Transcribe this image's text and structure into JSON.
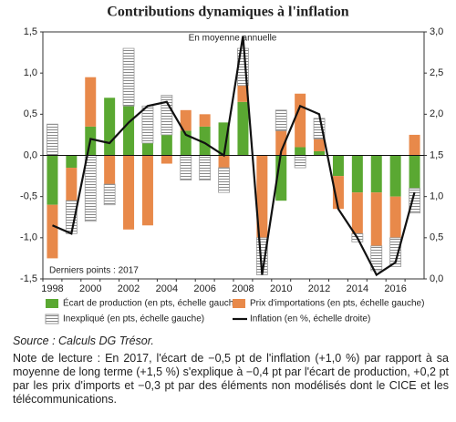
{
  "chart_data": {
    "type": "bar-line",
    "title": "Contributions dynamiques à l'inflation",
    "annotations": [
      "En moyenne annuelle",
      "Derniers points : 2017"
    ],
    "categories": [
      "1998",
      null,
      "2000",
      null,
      "2002",
      null,
      "2004",
      null,
      "2006",
      null,
      "2008",
      null,
      "2010",
      null,
      "2012",
      null,
      "2014",
      null,
      "2016",
      null
    ],
    "series": [
      {
        "name": "Écart de production (en pts, échelle gauche)",
        "type": "bar",
        "color": "#5aa832",
        "values": [
          -0.6,
          -0.15,
          0.35,
          0.7,
          0.6,
          0.15,
          0.25,
          0.3,
          0.35,
          0.4,
          0.65,
          0,
          -0.55,
          0.1,
          0.05,
          -0.25,
          -0.45,
          -0.45,
          -0.5,
          -0.4
        ]
      },
      {
        "name": "Prix d'importations (en pts, échelle gauche)",
        "type": "bar",
        "color": "#e8894a",
        "values": [
          -0.65,
          -0.4,
          0.6,
          -0.35,
          -0.9,
          -0.85,
          -0.1,
          0.25,
          0.15,
          -0.15,
          0.2,
          -1.0,
          0.3,
          0.65,
          0.15,
          -0.4,
          -0.5,
          -0.65,
          -0.5,
          0.25
        ]
      },
      {
        "name": "Inexpliqué (en pts, échelle gauche)",
        "type": "bar",
        "color": "#999999",
        "hatch": true,
        "values": [
          0.38,
          -0.4,
          -0.8,
          -0.25,
          0.7,
          0.45,
          0.48,
          -0.3,
          -0.3,
          -0.3,
          0.45,
          -0.45,
          0.25,
          -0.15,
          0.25,
          0,
          -0.1,
          -0.3,
          -0.35,
          -0.3
        ]
      },
      {
        "name": "Inflation (en %, échelle droite)",
        "type": "line",
        "axis": "y2",
        "color": "#111111",
        "values": [
          0.65,
          0.55,
          1.7,
          1.65,
          1.9,
          2.1,
          2.15,
          1.75,
          1.65,
          1.5,
          2.95,
          0.05,
          1.55,
          2.1,
          2.0,
          0.85,
          0.5,
          0.05,
          0.2,
          1.05
        ]
      }
    ],
    "ylim": [
      -1.5,
      1.5
    ],
    "yticks": [
      {
        "value": -1.5,
        "label": "-1,5"
      },
      {
        "value": -1,
        "label": "-1,0"
      },
      {
        "value": -0.5,
        "label": "-0,5"
      },
      {
        "value": 0,
        "label": "0,0"
      },
      {
        "value": 0.5,
        "label": "0,5"
      },
      {
        "value": 1,
        "label": "1,0"
      },
      {
        "value": 1.5,
        "label": "1,5"
      }
    ],
    "y2lim": [
      0,
      3
    ],
    "y2ticks": [
      {
        "value": 0,
        "label": "0,0"
      },
      {
        "value": 0.5,
        "label": "0,5"
      },
      {
        "value": 1,
        "label": "1,0"
      },
      {
        "value": 1.5,
        "label": "1,5"
      },
      {
        "value": 2,
        "label": "2,0"
      },
      {
        "value": 2.5,
        "label": "2,5"
      },
      {
        "value": 3,
        "label": "3,0"
      }
    ],
    "legend": "bottom",
    "source": "Source : Calculs DG Trésor.",
    "note": "Note de lecture : En 2017, l'écart de −0,5 pt de l'inflation (+1,0 %) par rapport à sa moyenne de long terme (+1,5 %) s'explique à −0,4 pt par l'écart de production, +0,2 pt par les prix d'imports et −0,3 pt par des éléments non modélisés dont le CICE et les télécommunications."
  }
}
